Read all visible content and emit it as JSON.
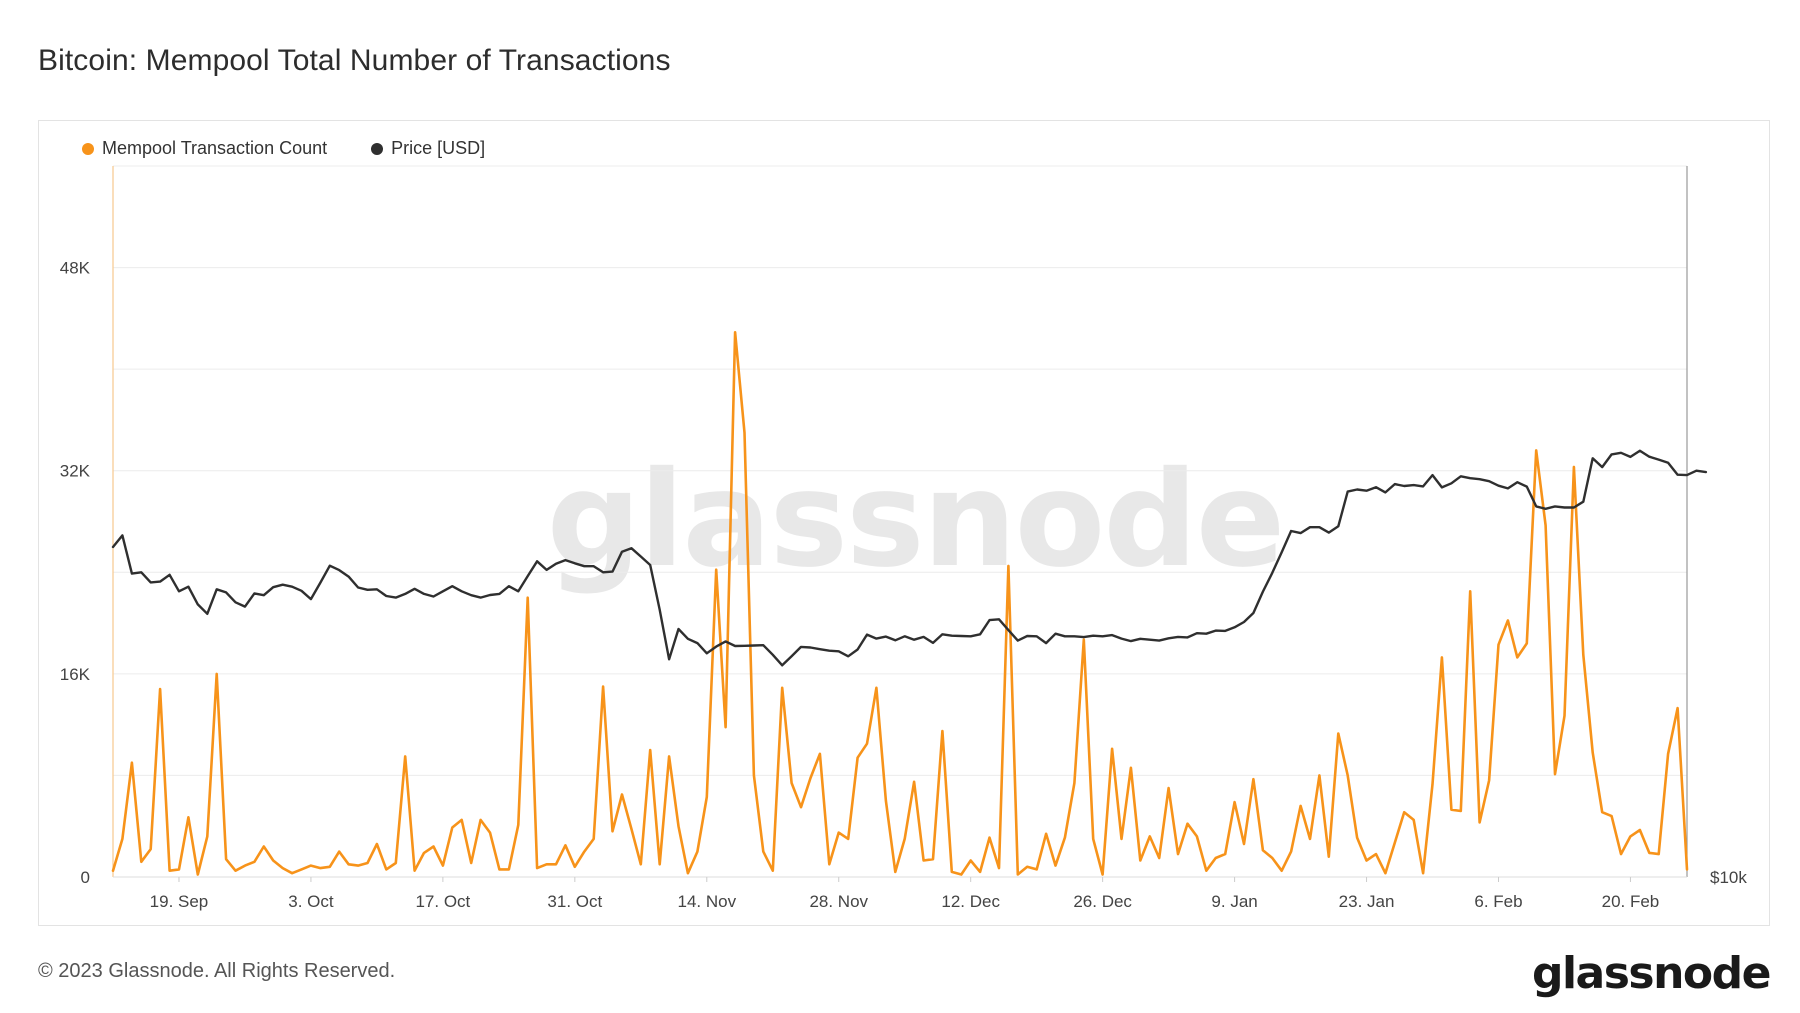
{
  "header": {
    "title": "Bitcoin: Mempool Total Number of Transactions"
  },
  "legend": [
    {
      "label": "Mempool Transaction Count",
      "color": "#f7931a"
    },
    {
      "label": "Price [USD]",
      "color": "#2f2f2f"
    }
  ],
  "watermark": "glassnode",
  "footer": {
    "copyright": "© 2023 Glassnode. All Rights Reserved.",
    "brand": "glassnode"
  },
  "chart_data": {
    "type": "line",
    "title": "Bitcoin: Mempool Total Number of Transactions",
    "xlabel": "",
    "ylabel": "",
    "y_ticks": [
      "0",
      "16K",
      "32K",
      "48K"
    ],
    "ylim": [
      0,
      56000
    ],
    "y2_ticks": [
      "$10k"
    ],
    "y2_scale": "log",
    "x_ticks": [
      "19. Sep",
      "3. Oct",
      "17. Oct",
      "31. Oct",
      "14. Nov",
      "28. Nov",
      "12. Dec",
      "26. Dec",
      "9. Jan",
      "23. Jan",
      "6. Feb",
      "20. Feb"
    ],
    "x_tick_indices": [
      7,
      21,
      35,
      49,
      63,
      77,
      91,
      105,
      119,
      133,
      147,
      161
    ],
    "grid": true,
    "legend_position": "top-left",
    "series": [
      {
        "name": "Mempool Transaction Count",
        "color": "#f7931a",
        "axis": "left",
        "values": [
          500,
          3000,
          9000,
          1200,
          2200,
          14800,
          500,
          600,
          4700,
          200,
          3200,
          16000,
          1400,
          500,
          900,
          1200,
          2400,
          1300,
          700,
          300,
          600,
          900,
          700,
          800,
          2000,
          1000,
          900,
          1100,
          2600,
          600,
          1100,
          9500,
          500,
          1900,
          2400,
          900,
          3900,
          4500,
          1100,
          4500,
          3500,
          600,
          600,
          4100,
          22000,
          700,
          1000,
          1000,
          2500,
          800,
          2000,
          3000,
          15000,
          3600,
          6500,
          3800,
          1000,
          10000,
          1000,
          9500,
          4000,
          300,
          2000,
          6300,
          24200,
          11800,
          42900,
          35000,
          8000,
          2000,
          500,
          14900,
          7400,
          5500,
          7800,
          9700,
          1000,
          3500,
          3000,
          9400,
          10500,
          14900,
          6000,
          400,
          3000,
          7500,
          1300,
          1400,
          11500,
          400,
          200,
          1300,
          400,
          3100,
          700,
          24500,
          200,
          800,
          600,
          3400,
          900,
          3100,
          7400,
          18700,
          3000,
          200,
          10100,
          3000,
          8600,
          1300,
          3200,
          1500,
          7000,
          1800,
          4200,
          3200,
          500,
          1500,
          1800,
          5900,
          2600,
          7700,
          2100,
          1500,
          500,
          2000,
          5600,
          3000,
          8000,
          1600,
          11300,
          8000,
          3100,
          1300,
          1800,
          300,
          2700,
          5100,
          4500,
          300,
          7300,
          17300,
          5300,
          5200,
          22500,
          4300,
          7600,
          18300,
          20200,
          17300,
          18400,
          33600,
          27700,
          8100,
          12700,
          32300,
          17500,
          9800,
          5100,
          4800,
          1800,
          3200,
          3700,
          1900,
          1800,
          9700,
          13300,
          600
        ]
      },
      {
        "name": "Price [USD]",
        "color": "#2f2f2f",
        "axis": "right",
        "values": [
          20100,
          20600,
          19000,
          19050,
          18650,
          18680,
          18950,
          18300,
          18480,
          17800,
          17450,
          18380,
          18260,
          17880,
          17720,
          18220,
          18150,
          18460,
          18560,
          18480,
          18320,
          18000,
          18640,
          19320,
          19140,
          18880,
          18450,
          18360,
          18380,
          18120,
          18060,
          18200,
          18400,
          18200,
          18100,
          18300,
          18500,
          18300,
          18150,
          18060,
          18160,
          18200,
          18500,
          18300,
          18900,
          19500,
          19150,
          19400,
          19550,
          19420,
          19300,
          19300,
          19050,
          19080,
          19900,
          20050,
          19700,
          19350,
          17600,
          15850,
          16900,
          16550,
          16400,
          16050,
          16280,
          16460,
          16300,
          16310,
          16320,
          16330,
          16000,
          15650,
          15950,
          16270,
          16250,
          16190,
          16140,
          16120,
          15950,
          16180,
          16700,
          16560,
          16630,
          16500,
          16640,
          16520,
          16620,
          16410,
          16710,
          16660,
          16650,
          16640,
          16710,
          17220,
          17250,
          16860,
          16490,
          16650,
          16640,
          16400,
          16730,
          16640,
          16640,
          16610,
          16660,
          16640,
          16680,
          16560,
          16470,
          16550,
          16520,
          16490,
          16570,
          16620,
          16600,
          16750,
          16730,
          16840,
          16830,
          16960,
          17150,
          17480,
          18290,
          19030,
          19880,
          20790,
          20700,
          20960,
          20960,
          20720,
          21000,
          22600,
          22700,
          22640,
          22810,
          22560,
          22960,
          22870,
          22910,
          22850,
          23400,
          22800,
          23000,
          23340,
          23250,
          23200,
          23100,
          22880,
          22750,
          23050,
          22840,
          21900,
          21790,
          21900,
          21850,
          21850,
          22120,
          24250,
          23800,
          24450,
          24530,
          24320,
          24640,
          24330,
          24180,
          24020,
          23420,
          23400,
          23620,
          23550
        ]
      }
    ]
  }
}
